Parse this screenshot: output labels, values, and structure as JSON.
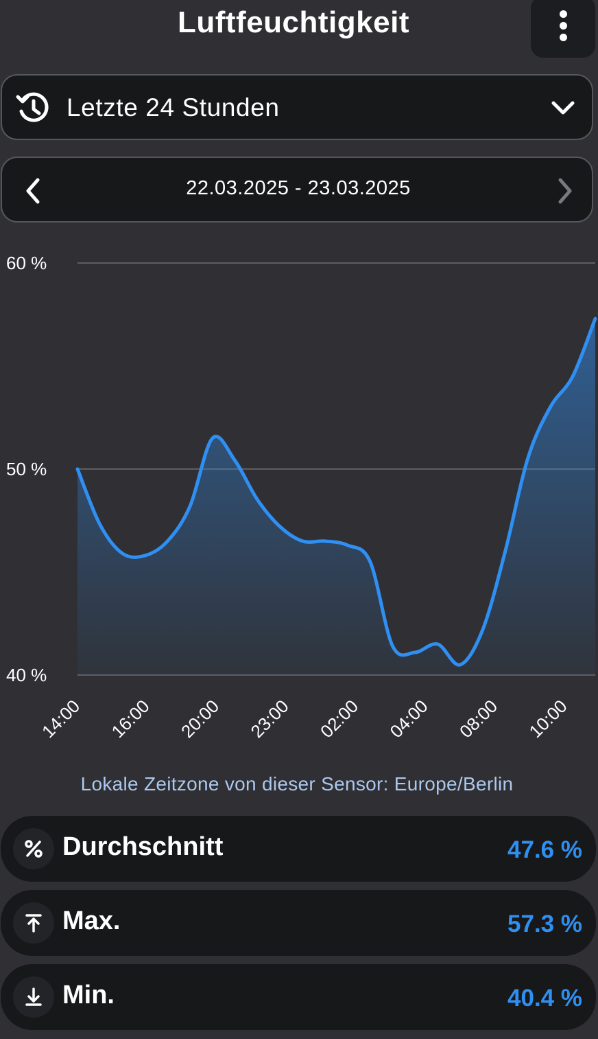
{
  "header": {
    "title": "Luftfeuchtigkeit",
    "menu_icon": "more-vertical-icon"
  },
  "range": {
    "label": "Letzte 24 Stunden",
    "icon": "history-icon",
    "dropdown_icon": "chevron-down-icon"
  },
  "date_nav": {
    "label": "22.03.2025 - 23.03.2025",
    "prev_icon": "chevron-left-icon",
    "next_icon": "chevron-right-icon"
  },
  "chart_data": {
    "type": "area",
    "y_ticks": [
      "60 %",
      "50 %",
      "40 %"
    ],
    "ylim": [
      40,
      60
    ],
    "x_tick_labels": [
      "14:00",
      "16:00",
      "20:00",
      "23:00",
      "02:00",
      "04:00",
      "08:00",
      "10:00"
    ],
    "grid": true,
    "line_color": "#2f8ff2",
    "series": [
      {
        "values": [
          50.0,
          47.3,
          45.9,
          45.8,
          46.5,
          48.2,
          51.5,
          50.4,
          48.5,
          47.2,
          46.5,
          46.5,
          46.3,
          45.5,
          41.4,
          41.1,
          41.5,
          40.5,
          42.2,
          46.0,
          50.5,
          53.0,
          54.5,
          57.3
        ]
      }
    ]
  },
  "timezone_note": "Lokale Zeitzone von dieser Sensor: Europe/Berlin",
  "stats": [
    {
      "label": "Durchschnitt",
      "value": "47.6 %",
      "icon": "percent-icon"
    },
    {
      "label": "Max.",
      "value": "57.3 %",
      "icon": "arrow-up-to-line-icon"
    },
    {
      "label": "Min.",
      "value": "40.4 %",
      "icon": "arrow-down-to-line-icon"
    }
  ],
  "colors": {
    "accent": "#2f8ff2",
    "background": "#303034",
    "card": "#17181a",
    "note": "#aac8ee"
  }
}
